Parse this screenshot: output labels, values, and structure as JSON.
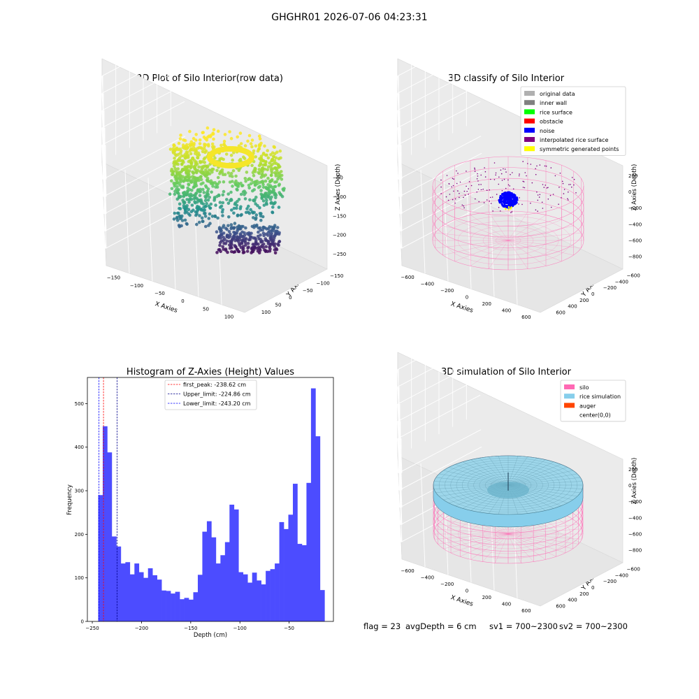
{
  "suptitle": "GHGHR01 2026-07-06 04:23:31",
  "panels": {
    "raw": {
      "title": "3D Plot of Silo Interior(row data)",
      "xlabel": "X Axies",
      "ylabel": "Y Axies",
      "zlabel": "Z Axies (Depth)",
      "xticks": [
        "−150",
        "−100",
        "−50",
        "0",
        "50",
        "100"
      ],
      "yticks": [
        "100",
        "50",
        "0",
        "−50",
        "−100",
        "−150"
      ],
      "zticks": [
        "−50",
        "−100",
        "−150",
        "−200",
        "−250"
      ]
    },
    "classify": {
      "title": "3D classify of Silo Interior",
      "xlabel": "X Axies",
      "ylabel": "Y Axies",
      "zlabel": "Z Axies (Depth)",
      "xticks": [
        "−600",
        "−400",
        "−200",
        "0",
        "200",
        "400",
        "600"
      ],
      "yticks": [
        "600",
        "400",
        "200",
        "0",
        "−200",
        "−400",
        "−600"
      ],
      "zticks": [
        "200",
        "0",
        "−200",
        "−400",
        "−600",
        "−800"
      ],
      "legend": [
        {
          "label": "original data",
          "color": "#b0b0b0"
        },
        {
          "label": "inner wall",
          "color": "#808080"
        },
        {
          "label": "rice surface",
          "color": "#00ff00"
        },
        {
          "label": "obstacle",
          "color": "#ff0000"
        },
        {
          "label": "noise",
          "color": "#0000ff"
        },
        {
          "label": "interpolated rice surface",
          "color": "#800080"
        },
        {
          "label": "symmetric generated points",
          "color": "#ffff00"
        }
      ]
    },
    "simulation": {
      "title": "3D simulation of Silo Interior",
      "xlabel": "X Axies",
      "ylabel": "Y Axies",
      "zlabel": "Z Axies (Depth)",
      "xticks": [
        "−600",
        "−400",
        "−200",
        "0",
        "200",
        "400",
        "600"
      ],
      "yticks": [
        "600",
        "400",
        "200",
        "0",
        "−200",
        "−400",
        "−600"
      ],
      "zticks": [
        "200",
        "0",
        "−200",
        "−400",
        "−600",
        "−800"
      ],
      "legend": [
        {
          "label": "silo",
          "color": "#ff69b4"
        },
        {
          "label": "rice simulation",
          "color": "#87ceeb"
        },
        {
          "label": "auger",
          "color": "#ff4500"
        },
        {
          "label": "center(0,0)",
          "color": "none"
        }
      ]
    }
  },
  "chart_data": [
    {
      "type": "bar",
      "title": "Histogram of Z-Axies (Height) Values",
      "xlabel": "Depth (cm)",
      "ylabel": "Frequency",
      "xlim": [
        -255,
        -5
      ],
      "ylim": [
        0,
        560
      ],
      "xticks": [
        -250,
        -200,
        -150,
        -100,
        -50
      ],
      "yticks": [
        0,
        100,
        200,
        300,
        400,
        500
      ],
      "bar_color": "#4c4cff",
      "bin_start": -244,
      "bin_width": 4.6,
      "values": [
        290,
        448,
        388,
        195,
        172,
        133,
        136,
        108,
        133,
        113,
        100,
        122,
        106,
        96,
        71,
        70,
        64,
        68,
        51,
        54,
        50,
        67,
        107,
        206,
        230,
        193,
        133,
        152,
        182,
        268,
        257,
        113,
        108,
        89,
        112,
        94,
        85,
        116,
        120,
        133,
        228,
        212,
        245,
        316,
        178,
        175,
        318,
        535,
        425,
        72
      ],
      "vlines": [
        {
          "label": "first_peak: -238.62 cm",
          "value": -238.62,
          "color": "#ff0000"
        },
        {
          "label": "Upper_limit: -224.86 cm",
          "value": -224.86,
          "color": "#00008b"
        },
        {
          "label": "Lower_limit: -243.20 cm",
          "value": -243.2,
          "color": "#0000ff"
        }
      ]
    }
  ],
  "footer": {
    "flag": "flag = 23",
    "avg_depth": "avgDepth = 6 cm",
    "sv1": "sv1 = 700~2300",
    "sv2": "sv2 = 700~2300"
  }
}
